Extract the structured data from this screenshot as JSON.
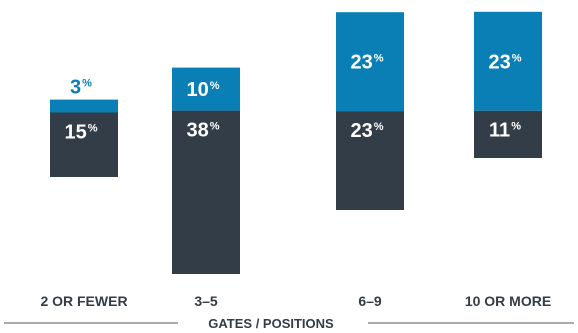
{
  "chart_data": {
    "type": "bar",
    "stacked": true,
    "categories": [
      "2 OR FEWER",
      "3–5",
      "6–9",
      "10 OR MORE"
    ],
    "series": [
      {
        "values": [
          15,
          38,
          23,
          11
        ],
        "color": "#323d48"
      },
      {
        "values": [
          3,
          10,
          23,
          23
        ],
        "color": "#0a7fb5"
      }
    ],
    "value_suffix": "%",
    "xlabel": "GATES / POSITIONS",
    "ylabel": "",
    "ylim": [
      0,
      50
    ],
    "grid": false,
    "legend": "none"
  }
}
